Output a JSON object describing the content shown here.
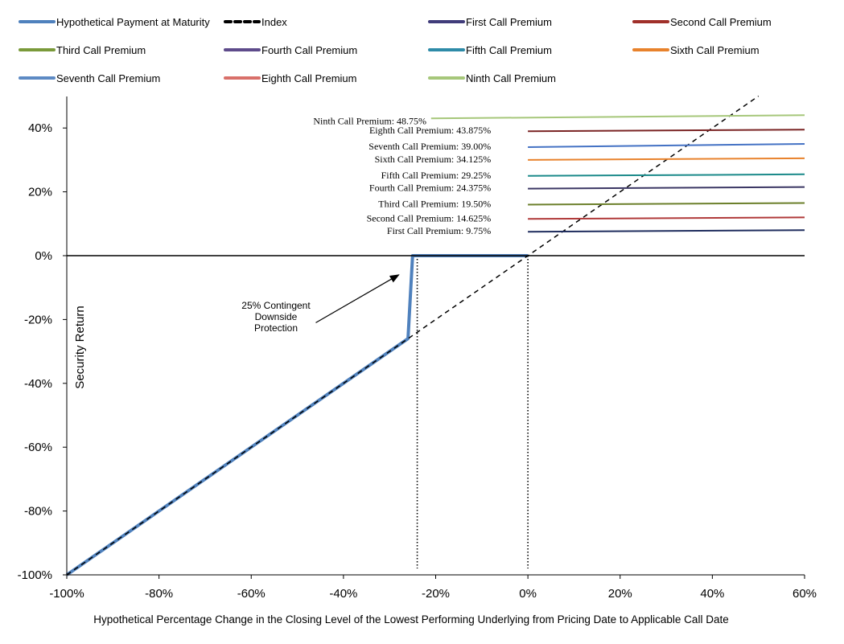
{
  "chart_data": {
    "type": "line",
    "title": "",
    "xlabel": "Hypothetical  Percentage  Change  in  the  Closing  Level  of  the  Lowest  Performing  Underlying  from  Pricing  Date  to  Applicable  Call  Date",
    "ylabel": "Security Return",
    "xlim": [
      -100,
      60
    ],
    "ylim": [
      -100,
      50
    ],
    "x_ticks": [
      "-100%",
      "-80%",
      "-60%",
      "-40%",
      "-20%",
      "0%",
      "20%",
      "40%",
      "60%"
    ],
    "y_ticks": [
      "-100%",
      "-80%",
      "-60%",
      "-40%",
      "-20%",
      "0%",
      "20%",
      "40%"
    ],
    "legend_position": "top",
    "legend": [
      {
        "label": "Hypothetical Payment at Maturity",
        "color": "#4f81bd",
        "dash": false
      },
      {
        "label": "Index",
        "color": "#000000",
        "dash": true
      },
      {
        "label": "First Call Premium",
        "color": "#403c7a",
        "dash": false
      },
      {
        "label": "Second Call Premium",
        "color": "#a0302a",
        "dash": false
      },
      {
        "label": "Third Call Premium",
        "color": "#7a9a3a",
        "dash": false
      },
      {
        "label": "Fourth Call Premium",
        "color": "#5e4b8b",
        "dash": false
      },
      {
        "label": "Fifth Call Premium",
        "color": "#2e8ba8",
        "dash": false
      },
      {
        "label": "Sixth Call Premium",
        "color": "#e8822c",
        "dash": false
      },
      {
        "label": "Seventh Call Premium",
        "color": "#5d8ac4",
        "dash": false
      },
      {
        "label": "Eighth Call Premium",
        "color": "#d9706a",
        "dash": false
      },
      {
        "label": "Ninth Call Premium",
        "color": "#a6c77a",
        "dash": false
      }
    ],
    "series": [
      {
        "name": "Hypothetical Payment at Maturity",
        "color": "#4f81bd",
        "width": 4,
        "dash": false,
        "x": [
          -100,
          -26,
          -25,
          -25,
          0
        ],
        "y": [
          -100,
          -26,
          0,
          0,
          0
        ]
      },
      {
        "name": "Index",
        "color": "#000000",
        "width": 1.5,
        "dash": true,
        "x": [
          -100,
          50
        ],
        "y": [
          -100,
          50
        ]
      },
      {
        "name": "First Call Premium",
        "color": "#1f2d5e",
        "width": 2,
        "dash": false,
        "x": [
          0,
          60
        ],
        "y": [
          7.5,
          8
        ]
      },
      {
        "name": "Second Call Premium",
        "color": "#b03a3a",
        "width": 2,
        "dash": false,
        "x": [
          0,
          60
        ],
        "y": [
          11.5,
          12
        ]
      },
      {
        "name": "Third Call Premium",
        "color": "#6b7f2a",
        "width": 2,
        "dash": false,
        "x": [
          0,
          60
        ],
        "y": [
          16,
          16.5
        ]
      },
      {
        "name": "Fourth Call Premium",
        "color": "#3b3764",
        "width": 2,
        "dash": false,
        "x": [
          0,
          60
        ],
        "y": [
          21,
          21.5
        ]
      },
      {
        "name": "Fifth Call Premium",
        "color": "#1b8a8a",
        "width": 2,
        "dash": false,
        "x": [
          0,
          60
        ],
        "y": [
          25,
          25.5
        ]
      },
      {
        "name": "Sixth Call Premium",
        "color": "#e8822c",
        "width": 2,
        "dash": false,
        "x": [
          0,
          60
        ],
        "y": [
          30,
          30.5
        ]
      },
      {
        "name": "Seventh Call Premium",
        "color": "#4472c4",
        "width": 2,
        "dash": false,
        "x": [
          0,
          60
        ],
        "y": [
          34,
          35
        ]
      },
      {
        "name": "Eighth Call Premium",
        "color": "#7a2424",
        "width": 2,
        "dash": false,
        "x": [
          0,
          60
        ],
        "y": [
          39,
          39.5
        ]
      },
      {
        "name": "Ninth Call Premium",
        "color": "#a6c77a",
        "width": 2,
        "dash": false,
        "x": [
          -21,
          60
        ],
        "y": [
          43,
          44
        ]
      }
    ],
    "call_premium_labels": [
      {
        "text": "Ninth Call Premium: 48.75%",
        "y": 43
      },
      {
        "text": "Eighth Call Premium: 43.875%",
        "y": 39
      },
      {
        "text": "Seventh Call Premium: 39.00%",
        "y": 34
      },
      {
        "text": "Sixth Call Premium: 34.125%",
        "y": 30
      },
      {
        "text": "Fifth Call Premium: 29.25%",
        "y": 25
      },
      {
        "text": "Fourth Call Premium: 24.375%",
        "y": 21
      },
      {
        "text": "Third Call Premium: 19.50%",
        "y": 16
      },
      {
        "text": "Second Call Premium: 14.625%",
        "y": 11.5
      },
      {
        "text": "First Call Premium: 9.75%",
        "y": 7.5
      }
    ],
    "reference_lines": [
      {
        "kind": "vertical-dotted",
        "x": -24,
        "y_from": 0,
        "y_to": -98
      },
      {
        "kind": "vertical-dotted",
        "x": 0,
        "y_from": 0,
        "y_to": -98
      }
    ],
    "annotation": {
      "lines": [
        "25% Contingent",
        "Downside",
        "Protection"
      ],
      "arrow_from": [
        -46,
        -21
      ],
      "arrow_to": [
        -28,
        -6
      ]
    }
  }
}
